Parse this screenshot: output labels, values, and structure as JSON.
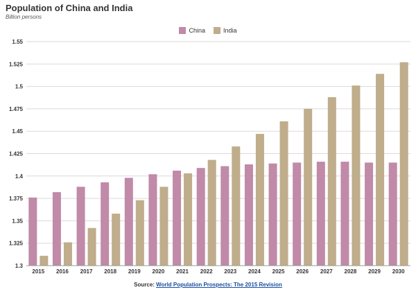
{
  "chart_data": {
    "type": "bar",
    "title": "Population of China and India",
    "subtitle": "Billion persons",
    "xlabel": "",
    "ylabel": "",
    "ylim": [
      1.3,
      1.55
    ],
    "yticks": [
      "1.3",
      "1.325",
      "1.35",
      "1.375",
      "1.4",
      "1.425",
      "1.45",
      "1.475",
      "1.5",
      "1.525",
      "1.55"
    ],
    "ytick_values": [
      1.3,
      1.325,
      1.35,
      1.375,
      1.4,
      1.425,
      1.45,
      1.475,
      1.5,
      1.525,
      1.55
    ],
    "categories": [
      "2015",
      "2016",
      "2017",
      "2018",
      "2019",
      "2020",
      "2021",
      "2022",
      "2023",
      "2024",
      "2025",
      "2026",
      "2027",
      "2028",
      "2029",
      "2030"
    ],
    "series": [
      {
        "name": "China",
        "color": "#c08aa8",
        "values": [
          1.376,
          1.382,
          1.388,
          1.393,
          1.398,
          1.402,
          1.406,
          1.409,
          1.411,
          1.413,
          1.414,
          1.415,
          1.416,
          1.416,
          1.415,
          1.415
        ]
      },
      {
        "name": "India",
        "color": "#bfad8b",
        "values": [
          1.311,
          1.326,
          1.342,
          1.358,
          1.373,
          1.388,
          1.403,
          1.418,
          1.433,
          1.447,
          1.461,
          1.475,
          1.488,
          1.501,
          1.514,
          1.527
        ]
      }
    ],
    "grid": true,
    "legend_position": "top-center",
    "source_prefix": "Source: ",
    "source_text": "World Population Prospects: The 2015 Revision"
  }
}
